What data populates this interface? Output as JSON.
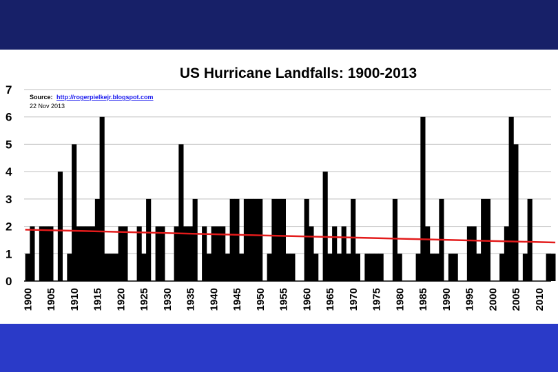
{
  "colors": {
    "top_band": "#172068",
    "bottom_band": "#2a3ac8",
    "bar": "#000000",
    "trend": "#e31b1b",
    "grid": "#bdbdbd"
  },
  "chart_data": {
    "type": "bar",
    "title": "US Hurricane Landfalls: 1900-2013",
    "source_label": "Source:",
    "source_url": "http://rogerpielkejr.blogspot.com",
    "date": "22 Nov 2013",
    "xlabel": "",
    "ylabel": "",
    "ylim": [
      0,
      7
    ],
    "yticks": [
      "0",
      "1",
      "2",
      "3",
      "4",
      "5",
      "6",
      "7"
    ],
    "grid": true,
    "x_start": 1900,
    "x_end": 2013,
    "xticks": [
      "1900",
      "1905",
      "1910",
      "1915",
      "1920",
      "1925",
      "1930",
      "1935",
      "1940",
      "1945",
      "1950",
      "1955",
      "1960",
      "1965",
      "1970",
      "1975",
      "1980",
      "1985",
      "1990",
      "1995",
      "2000",
      "2005",
      "2010"
    ],
    "years": [
      1900,
      1901,
      1902,
      1903,
      1904,
      1905,
      1906,
      1907,
      1908,
      1909,
      1910,
      1911,
      1912,
      1913,
      1914,
      1915,
      1916,
      1917,
      1918,
      1919,
      1920,
      1921,
      1922,
      1923,
      1924,
      1925,
      1926,
      1927,
      1928,
      1929,
      1930,
      1931,
      1932,
      1933,
      1934,
      1935,
      1936,
      1937,
      1938,
      1939,
      1940,
      1941,
      1942,
      1943,
      1944,
      1945,
      1946,
      1947,
      1948,
      1949,
      1950,
      1951,
      1952,
      1953,
      1954,
      1955,
      1956,
      1957,
      1958,
      1959,
      1960,
      1961,
      1962,
      1963,
      1964,
      1965,
      1966,
      1967,
      1968,
      1969,
      1970,
      1971,
      1972,
      1973,
      1974,
      1975,
      1976,
      1977,
      1978,
      1979,
      1980,
      1981,
      1982,
      1983,
      1984,
      1985,
      1986,
      1987,
      1988,
      1989,
      1990,
      1991,
      1992,
      1993,
      1994,
      1995,
      1996,
      1997,
      1998,
      1999,
      2000,
      2001,
      2002,
      2003,
      2004,
      2005,
      2006,
      2007,
      2008,
      2009,
      2010,
      2011,
      2012,
      2013
    ],
    "values": [
      1,
      2,
      0,
      2,
      2,
      2,
      0,
      4,
      0,
      1,
      5,
      2,
      2,
      2,
      2,
      3,
      6,
      1,
      1,
      1,
      2,
      2,
      0,
      0,
      2,
      1,
      3,
      0,
      2,
      2,
      0,
      0,
      2,
      5,
      2,
      2,
      3,
      0,
      2,
      1,
      2,
      2,
      2,
      1,
      3,
      3,
      1,
      3,
      3,
      3,
      3,
      0,
      1,
      3,
      3,
      3,
      1,
      1,
      0,
      0,
      3,
      2,
      1,
      0,
      4,
      1,
      2,
      1,
      2,
      1,
      3,
      1,
      0,
      1,
      1,
      1,
      1,
      0,
      0,
      3,
      1,
      0,
      0,
      0,
      1,
      6,
      2,
      1,
      1,
      3,
      0,
      1,
      1,
      0,
      0,
      2,
      2,
      1,
      3,
      3,
      0,
      0,
      1,
      2,
      6,
      5,
      0,
      1,
      3,
      0,
      0,
      0,
      1,
      1
    ],
    "trend": {
      "name": "linear trend",
      "start_value": 1.88,
      "end_value": 1.41
    }
  }
}
